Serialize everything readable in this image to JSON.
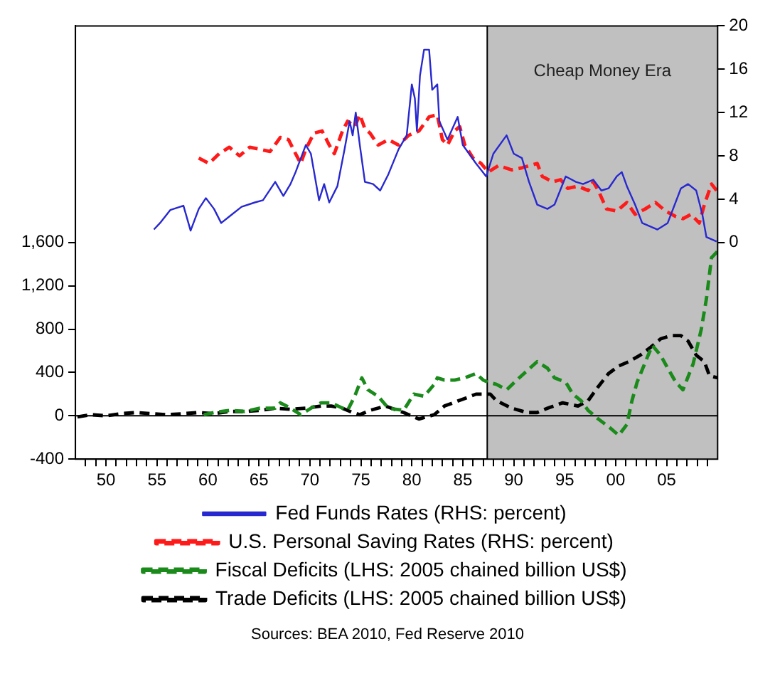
{
  "chart_data": {
    "type": "line",
    "xlim": [
      1947,
      2010
    ],
    "xticks": [
      {
        "value": 1948,
        "label": null
      },
      {
        "value": 1949,
        "label": null
      },
      {
        "value": 1950,
        "label": "50"
      },
      {
        "value": 1951,
        "label": null
      },
      {
        "value": 1952,
        "label": null
      },
      {
        "value": 1953,
        "label": null
      },
      {
        "value": 1954,
        "label": null
      },
      {
        "value": 1955,
        "label": "55"
      },
      {
        "value": 1956,
        "label": null
      },
      {
        "value": 1957,
        "label": null
      },
      {
        "value": 1958,
        "label": null
      },
      {
        "value": 1959,
        "label": null
      },
      {
        "value": 1960,
        "label": "60"
      },
      {
        "value": 1961,
        "label": null
      },
      {
        "value": 1962,
        "label": null
      },
      {
        "value": 1963,
        "label": null
      },
      {
        "value": 1964,
        "label": null
      },
      {
        "value": 1965,
        "label": "65"
      },
      {
        "value": 1966,
        "label": null
      },
      {
        "value": 1967,
        "label": null
      },
      {
        "value": 1968,
        "label": null
      },
      {
        "value": 1969,
        "label": null
      },
      {
        "value": 1970,
        "label": "70"
      },
      {
        "value": 1971,
        "label": null
      },
      {
        "value": 1972,
        "label": null
      },
      {
        "value": 1973,
        "label": null
      },
      {
        "value": 1974,
        "label": null
      },
      {
        "value": 1975,
        "label": "75"
      },
      {
        "value": 1976,
        "label": null
      },
      {
        "value": 1977,
        "label": null
      },
      {
        "value": 1978,
        "label": null
      },
      {
        "value": 1979,
        "label": null
      },
      {
        "value": 1980,
        "label": "80"
      },
      {
        "value": 1981,
        "label": null
      },
      {
        "value": 1982,
        "label": null
      },
      {
        "value": 1983,
        "label": null
      },
      {
        "value": 1984,
        "label": null
      },
      {
        "value": 1985,
        "label": "85"
      },
      {
        "value": 1986,
        "label": null
      },
      {
        "value": 1987,
        "label": null
      },
      {
        "value": 1988,
        "label": null
      },
      {
        "value": 1989,
        "label": null
      },
      {
        "value": 1990,
        "label": "90"
      },
      {
        "value": 1991,
        "label": null
      },
      {
        "value": 1992,
        "label": null
      },
      {
        "value": 1993,
        "label": null
      },
      {
        "value": 1994,
        "label": null
      },
      {
        "value": 1995,
        "label": "95"
      },
      {
        "value": 1996,
        "label": null
      },
      {
        "value": 1997,
        "label": null
      },
      {
        "value": 1998,
        "label": null
      },
      {
        "value": 1999,
        "label": null
      },
      {
        "value": 2000,
        "label": "00"
      },
      {
        "value": 2001,
        "label": null
      },
      {
        "value": 2002,
        "label": null
      },
      {
        "value": 2003,
        "label": null
      },
      {
        "value": 2004,
        "label": null
      },
      {
        "value": 2005,
        "label": "05"
      },
      {
        "value": 2006,
        "label": null
      },
      {
        "value": 2007,
        "label": null
      },
      {
        "value": 2008,
        "label": null
      },
      {
        "value": 2009,
        "label": null
      }
    ],
    "ylim": [
      -400,
      3600
    ],
    "yticks": [
      -400,
      0,
      400,
      800,
      {
        "value": 1200,
        "label": "1,200"
      },
      {
        "value": 1600,
        "label": "1,600"
      }
    ],
    "y2lim": [
      -20,
      20
    ],
    "y2ticks": [
      0,
      4,
      8,
      12,
      16,
      20
    ],
    "grid": false,
    "legend": "bottom",
    "bands": [
      {
        "axis": "x",
        "from": 1987.4,
        "to": 2010,
        "label": "Cheap Money Era",
        "color": "#c0c0c0"
      }
    ],
    "ref_lines": [
      {
        "axis": "y",
        "value": 0,
        "color": "#000000"
      }
    ],
    "annotations": [
      "Sources: BEA 2010, Fed Reserve 2010"
    ],
    "series": [
      {
        "name": "Fed Funds Rates (RHS: percent)",
        "color": "#2828d0",
        "axis": "y2",
        "line_style": "solid",
        "x": [
          1954.7,
          1955.3,
          1956.3,
          1957.6,
          1958.3,
          1959.1,
          1959.8,
          1960.6,
          1961.3,
          1962.1,
          1963.3,
          1964.6,
          1965.4,
          1966.6,
          1967.4,
          1968.1,
          1968.6,
          1969.6,
          1970.1,
          1970.9,
          1971.4,
          1971.9,
          1972.7,
          1973.4,
          1973.9,
          1974.2,
          1974.5,
          1974.9,
          1975.4,
          1976.2,
          1976.9,
          1977.7,
          1978.7,
          1979.5,
          1980.0,
          1980.3,
          1980.5,
          1980.8,
          1981.2,
          1981.7,
          1982.0,
          1982.5,
          1982.7,
          1983.5,
          1984.5,
          1985.0,
          1986.3,
          1987.3,
          1988.0,
          1989.3,
          1990.0,
          1990.8,
          1991.5,
          1992.3,
          1993.3,
          1994.0,
          1995.1,
          1996.1,
          1996.8,
          1997.8,
          1998.6,
          1999.3,
          2000.1,
          2000.6,
          2001.1,
          2001.9,
          2002.6,
          2004.1,
          2005.1,
          2006.4,
          2007.1,
          2007.9,
          2008.5,
          2008.9,
          2009.9
        ],
        "values": [
          1.2,
          1.8,
          3.0,
          3.4,
          1.1,
          3.1,
          4.1,
          3.1,
          1.8,
          2.4,
          3.3,
          3.7,
          3.9,
          5.6,
          4.3,
          5.4,
          6.5,
          9.0,
          8.2,
          3.9,
          5.4,
          3.7,
          5.2,
          8.6,
          11.2,
          9.9,
          12.0,
          9.0,
          5.6,
          5.4,
          4.8,
          6.3,
          8.6,
          9.9,
          14.6,
          13.3,
          10.3,
          15.4,
          17.8,
          17.8,
          14.1,
          14.6,
          11.2,
          9.5,
          11.6,
          9.0,
          7.3,
          6.1,
          8.2,
          9.9,
          8.2,
          7.8,
          5.6,
          3.5,
          3.1,
          3.5,
          6.1,
          5.6,
          5.4,
          5.8,
          4.8,
          5.0,
          6.1,
          6.5,
          5.2,
          3.5,
          1.8,
          1.2,
          1.8,
          5.0,
          5.4,
          4.8,
          2.6,
          0.5,
          0.1
        ]
      },
      {
        "name": "U.S. Personal Saving Rates (RHS: percent)",
        "color": "#ff1a1a",
        "axis": "y2",
        "line_style": "dashed",
        "x": [
          1959.1,
          1960.1,
          1961.1,
          1962.1,
          1963.1,
          1964.1,
          1965.1,
          1966.1,
          1967.1,
          1967.9,
          1968.6,
          1969.1,
          1969.6,
          1970.4,
          1971.2,
          1971.9,
          1972.4,
          1973.2,
          1973.7,
          1974.4,
          1974.9,
          1975.4,
          1975.9,
          1976.7,
          1977.7,
          1978.7,
          1979.7,
          1980.7,
          1981.7,
          1982.5,
          1983.0,
          1983.5,
          1984.2,
          1984.7,
          1985.2,
          1986.0,
          1986.8,
          1987.5,
          1988.5,
          1989.8,
          1990.8,
          1992.3,
          1992.8,
          1993.8,
          1994.6,
          1995.3,
          1996.3,
          1997.3,
          1997.8,
          1998.3,
          1999.1,
          2000.1,
          2001.1,
          2001.9,
          2002.9,
          2003.9,
          2004.9,
          2005.9,
          2006.6,
          2007.4,
          2008.2,
          2008.7,
          2009.4,
          2009.9
        ],
        "values": [
          7.8,
          7.3,
          8.2,
          8.8,
          8.0,
          8.8,
          8.6,
          8.4,
          9.7,
          9.5,
          8.2,
          7.3,
          8.6,
          10.1,
          10.3,
          9.0,
          8.2,
          10.3,
          11.2,
          10.7,
          11.8,
          10.5,
          10.1,
          9.0,
          9.5,
          9.0,
          9.9,
          10.3,
          11.6,
          11.8,
          9.5,
          9.0,
          10.3,
          10.7,
          9.0,
          7.8,
          7.3,
          6.5,
          7.1,
          6.7,
          6.9,
          7.3,
          6.1,
          5.6,
          5.8,
          5.0,
          5.2,
          4.8,
          5.6,
          4.8,
          3.1,
          2.9,
          3.7,
          2.6,
          3.1,
          3.7,
          2.9,
          2.4,
          2.2,
          2.6,
          1.8,
          3.5,
          5.4,
          4.8
        ]
      },
      {
        "name": "Fiscal Deficits (LHS: 2005 chained billion US$)",
        "color": "#1a8a1a",
        "axis": "y",
        "line_style": "dashed",
        "x": [
          1959.6,
          1960.6,
          1962.1,
          1963.6,
          1965.1,
          1966.6,
          1967.1,
          1968.1,
          1969.1,
          1970.1,
          1971.1,
          1972.1,
          1973.2,
          1973.7,
          1974.4,
          1975.1,
          1975.7,
          1976.7,
          1977.7,
          1979.2,
          1980.2,
          1981.2,
          1982.2,
          1982.5,
          1983.2,
          1984.2,
          1985.2,
          1986.3,
          1987.0,
          1987.5,
          1988.3,
          1989.3,
          1990.3,
          1991.0,
          1992.3,
          1993.3,
          1994.0,
          1995.1,
          1995.8,
          1996.6,
          1997.3,
          1998.3,
          1999.3,
          2000.3,
          2001.1,
          2001.6,
          2002.1,
          2003.1,
          2003.6,
          2004.4,
          2005.1,
          2005.9,
          2006.6,
          2007.6,
          2008.4,
          2008.9,
          2009.4,
          2010.0
        ],
        "values": [
          10,
          30,
          50,
          40,
          70,
          70,
          120,
          70,
          10,
          70,
          120,
          120,
          70,
          50,
          180,
          350,
          240,
          180,
          70,
          50,
          200,
          180,
          290,
          350,
          330,
          330,
          350,
          390,
          330,
          310,
          290,
          240,
          330,
          390,
          500,
          440,
          350,
          310,
          200,
          140,
          50,
          -30,
          -100,
          -180,
          -80,
          140,
          310,
          540,
          650,
          560,
          440,
          310,
          240,
          480,
          800,
          1080,
          1460,
          1520
        ]
      },
      {
        "name": "Trade Deficits (LHS: 2005 chained billion US$)",
        "color": "#000000",
        "axis": "y",
        "line_style": "dashed",
        "x": [
          1947.2,
          1948.5,
          1950.0,
          1951.5,
          1953.0,
          1954.5,
          1956.0,
          1957.6,
          1959.1,
          1960.6,
          1962.1,
          1963.6,
          1965.1,
          1966.6,
          1968.1,
          1969.6,
          1971.1,
          1972.1,
          1973.2,
          1974.2,
          1974.9,
          1975.9,
          1977.4,
          1979.2,
          1980.7,
          1982.2,
          1983.2,
          1985.2,
          1986.3,
          1987.7,
          1988.3,
          1989.8,
          1991.3,
          1992.3,
          1993.3,
          1994.8,
          1996.3,
          1997.3,
          1998.3,
          1999.3,
          2000.3,
          2001.3,
          2002.4,
          2003.4,
          2004.4,
          2005.4,
          2006.4,
          2007.1,
          2007.9,
          2008.7,
          2009.2,
          2010.0
        ],
        "values": [
          -10,
          10,
          0,
          20,
          30,
          20,
          10,
          20,
          30,
          20,
          40,
          40,
          50,
          70,
          60,
          70,
          90,
          90,
          70,
          30,
          10,
          50,
          90,
          30,
          -30,
          10,
          90,
          160,
          200,
          200,
          140,
          70,
          30,
          30,
          70,
          120,
          90,
          140,
          270,
          390,
          460,
          500,
          560,
          630,
          710,
          740,
          740,
          690,
          560,
          500,
          370,
          350
        ]
      }
    ]
  }
}
